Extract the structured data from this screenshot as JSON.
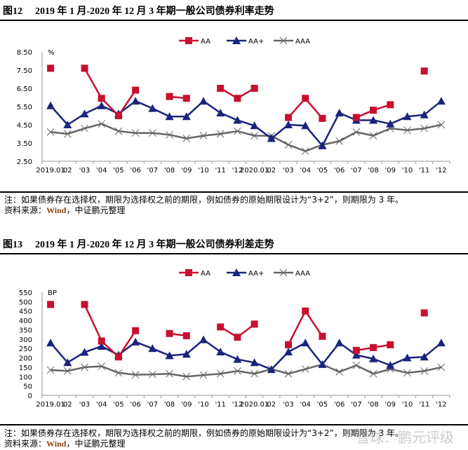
{
  "figures": [
    {
      "num": "图12",
      "title": "2019 年 1 月-2020 年 12 月 3 年期一般公司债券利率走势",
      "note": "注：如果债券存在选择权，期限为选择权之前的期限，例如债券的原始期限设计为“3+2”，则期限为 3 年。",
      "source_prefix": "资料来源：",
      "source_name": "Wind",
      "source_suffix": "，中证鹏元整理"
    },
    {
      "num": "图13",
      "title": "2019 年 1 月-2020 年 12 月 3 年期一般公司债券利差走势",
      "note": "注：如果债券存在选择权，期限为选择权之前的期限，例如债券的原始期限设计为“3+2”，则期限为 3 年。",
      "source_prefix": "资料来源：",
      "source_name": "Wind",
      "source_suffix": "，中证鹏元整理"
    }
  ],
  "watermark": "雪球：鹏元评级",
  "colors": {
    "AA": "#c8102e",
    "AA+": "#1a237e",
    "AAA": "#666666"
  },
  "chart_data": [
    {
      "type": "line",
      "unit": "%",
      "ylim": [
        2.5,
        8.5
      ],
      "yticks": [
        "2.50",
        "3.50",
        "4.50",
        "5.50",
        "6.50",
        "7.50",
        "8.50"
      ],
      "categories": [
        "2019.01",
        "02",
        "'03",
        "'04",
        "'05",
        "'06",
        "'07",
        "'08",
        "'09",
        "'10",
        "'11",
        "'12",
        "2020.01",
        "02",
        "'03",
        "'04",
        "'05",
        "'06",
        "'07",
        "'08",
        "'09",
        "'10",
        "'11",
        "'12"
      ],
      "legend": "top-center",
      "series": [
        {
          "name": "AA",
          "marker": "square",
          "values": [
            7.6,
            null,
            7.6,
            5.95,
            5.0,
            6.4,
            null,
            6.05,
            5.95,
            null,
            6.5,
            5.95,
            6.5,
            null,
            4.9,
            5.95,
            4.85,
            null,
            4.9,
            5.3,
            5.6,
            null,
            7.45,
            null
          ]
        },
        {
          "name": "AA+",
          "marker": "triangle",
          "values": [
            5.55,
            4.5,
            5.1,
            5.55,
            5.1,
            5.8,
            5.4,
            4.95,
            4.95,
            5.8,
            5.15,
            4.75,
            4.45,
            3.75,
            4.5,
            4.45,
            3.35,
            5.15,
            4.75,
            4.75,
            4.55,
            4.95,
            5.05,
            5.8
          ]
        },
        {
          "name": "AAA",
          "marker": "x",
          "values": [
            4.1,
            4.0,
            4.3,
            4.55,
            4.15,
            4.05,
            4.05,
            3.95,
            3.75,
            3.9,
            4.0,
            4.15,
            3.9,
            3.9,
            3.4,
            3.05,
            3.4,
            3.6,
            4.1,
            3.9,
            4.3,
            4.2,
            4.3,
            4.5
          ]
        }
      ]
    },
    {
      "type": "line",
      "unit": "BP",
      "ylim": [
        0,
        550
      ],
      "yticks": [
        "0",
        "50",
        "100",
        "150",
        "200",
        "250",
        "300",
        "350",
        "400",
        "450",
        "500",
        "550"
      ],
      "categories": [
        "2019.01",
        "02",
        "'03",
        "'04",
        "'05",
        "'06",
        "'07",
        "'08",
        "'09",
        "'10",
        "'11",
        "'12",
        "2020.01",
        "02",
        "'03",
        "'04",
        "'05",
        "'06",
        "'07",
        "'08",
        "'09",
        "'10",
        "'11",
        "'12"
      ],
      "legend": "top-center",
      "series": [
        {
          "name": "AA",
          "marker": "square",
          "values": [
            485,
            null,
            485,
            290,
            205,
            345,
            null,
            330,
            318,
            null,
            365,
            310,
            380,
            null,
            270,
            450,
            315,
            null,
            240,
            255,
            270,
            null,
            440,
            null
          ]
        },
        {
          "name": "AA+",
          "marker": "triangle",
          "values": [
            280,
            175,
            230,
            262,
            215,
            285,
            250,
            212,
            220,
            297,
            232,
            192,
            175,
            138,
            232,
            280,
            165,
            280,
            215,
            195,
            160,
            200,
            205,
            280
          ]
        },
        {
          "name": "AAA",
          "marker": "x",
          "values": [
            135,
            130,
            150,
            155,
            120,
            110,
            112,
            115,
            100,
            108,
            115,
            130,
            115,
            140,
            115,
            140,
            165,
            125,
            160,
            115,
            140,
            120,
            130,
            150
          ]
        }
      ]
    }
  ]
}
